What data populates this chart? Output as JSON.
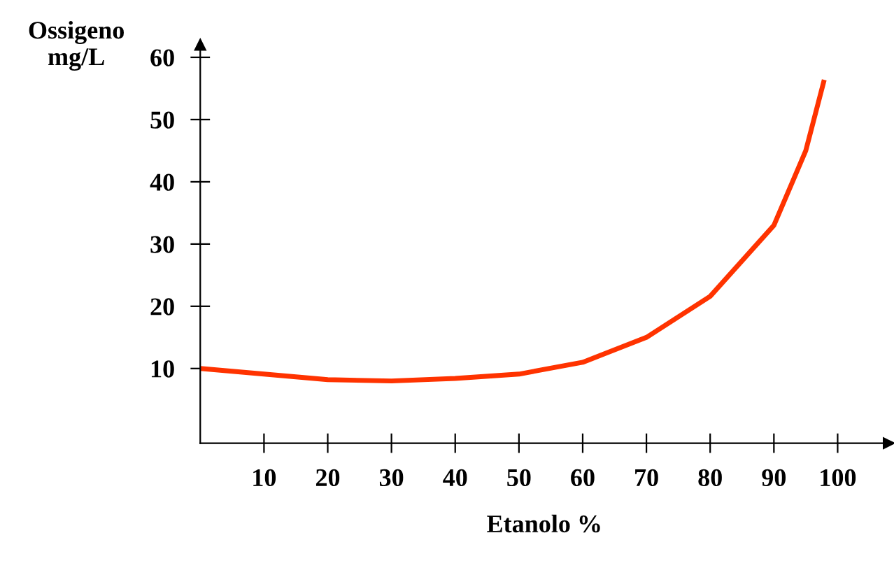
{
  "chart_data": {
    "type": "line",
    "xlabel": "Etanolo %",
    "ylabel": "Ossigeno\nmg/L",
    "x": [
      0,
      10,
      20,
      30,
      40,
      50,
      60,
      70,
      80,
      90,
      95,
      97.8
    ],
    "series": [
      {
        "color": "#ff3300",
        "values": [
          10,
          9.1,
          8.2,
          8.0,
          8.4,
          9.1,
          11,
          15,
          21.6,
          33,
          45,
          56
        ]
      }
    ],
    "xlim": [
      0,
      108
    ],
    "ylim": [
      -2,
      62
    ],
    "xticks": [
      10,
      20,
      30,
      40,
      50,
      60,
      70,
      80,
      90,
      100
    ],
    "yticks": [
      10,
      20,
      30,
      40,
      50,
      60
    ],
    "grid": false,
    "legend": false,
    "marker": "none",
    "line_style": "solid"
  }
}
